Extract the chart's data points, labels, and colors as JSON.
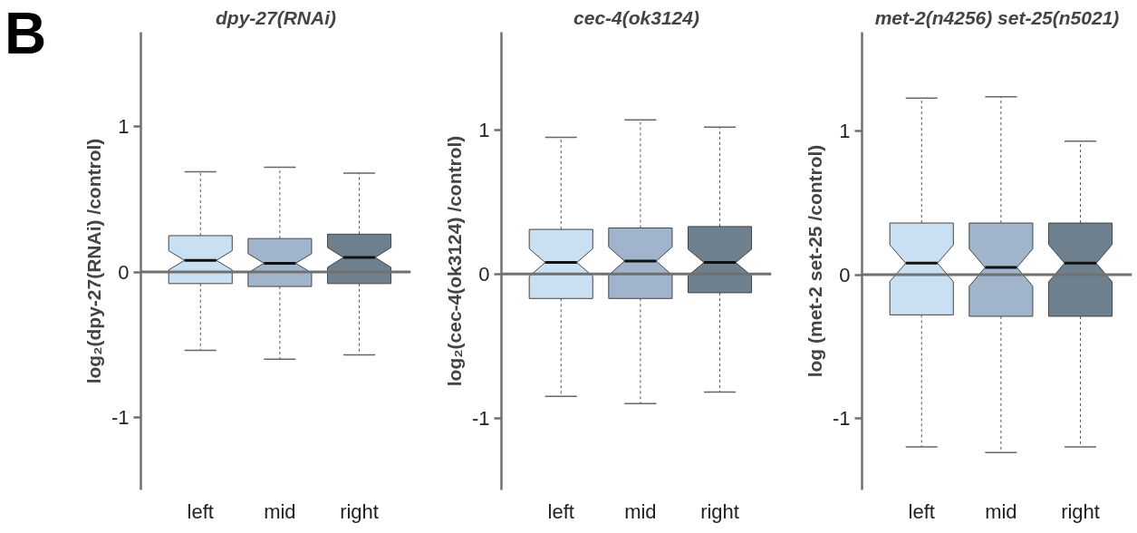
{
  "chart_data": [
    {
      "type": "box",
      "title": "dpy-27(RNAi)",
      "ylabel": "log₂(dpy-27(RNAi) /control)",
      "annotations": [
        "B"
      ],
      "categories": [
        "left",
        "mid",
        "right"
      ],
      "colors": [
        "#c9dff2",
        "#a0b4cc",
        "#6e7f8e"
      ],
      "boxes": [
        {
          "low": -0.54,
          "q1": -0.08,
          "median": 0.08,
          "q3": 0.25,
          "high": 0.69
        },
        {
          "low": -0.6,
          "q1": -0.1,
          "median": 0.06,
          "q3": 0.23,
          "high": 0.72
        },
        {
          "low": -0.57,
          "q1": -0.08,
          "median": 0.1,
          "q3": 0.26,
          "high": 0.68
        }
      ],
      "ylim": [
        -1.5,
        1.65
      ],
      "yticks": [
        -1,
        0,
        1
      ],
      "ref_lines": [
        {
          "axis": "y",
          "value": 0,
          "color": "#707070"
        }
      ]
    },
    {
      "type": "box",
      "title": "cec-4(ok3124)",
      "ylabel": "log₂(cec-4(ok3124) /control)",
      "categories": [
        "left",
        "mid",
        "right"
      ],
      "colors": [
        "#c9dff2",
        "#a0b4cc",
        "#6e7f8e"
      ],
      "boxes": [
        {
          "low": -0.85,
          "q1": -0.17,
          "median": 0.08,
          "q3": 0.31,
          "high": 0.95
        },
        {
          "low": -0.9,
          "q1": -0.17,
          "median": 0.09,
          "q3": 0.32,
          "high": 1.07
        },
        {
          "low": -0.82,
          "q1": -0.13,
          "median": 0.08,
          "q3": 0.33,
          "high": 1.02
        }
      ],
      "ylim": [
        -1.5,
        1.68
      ],
      "yticks": [
        -1,
        0,
        1
      ],
      "ref_lines": [
        {
          "axis": "y",
          "value": 0,
          "color": "#707070"
        }
      ]
    },
    {
      "type": "box",
      "title": "met-2(n4256) set-25(n5021)",
      "ylabel": "log (met-2 set-25 /control)",
      "categories": [
        "left",
        "mid",
        "right"
      ],
      "colors": [
        "#c9dff2",
        "#a0b4cc",
        "#6e7f8e"
      ],
      "boxes": [
        {
          "low": -1.2,
          "q1": -0.28,
          "median": 0.08,
          "q3": 0.36,
          "high": 1.23
        },
        {
          "low": -1.24,
          "q1": -0.29,
          "median": 0.05,
          "q3": 0.36,
          "high": 1.24
        },
        {
          "low": -1.2,
          "q1": -0.29,
          "median": 0.08,
          "q3": 0.36,
          "high": 0.93
        }
      ],
      "ylim": [
        -1.5,
        1.69
      ],
      "yticks": [
        -1,
        0,
        1
      ],
      "ref_lines": [
        {
          "axis": "y",
          "value": 0,
          "color": "#707070"
        }
      ]
    }
  ]
}
